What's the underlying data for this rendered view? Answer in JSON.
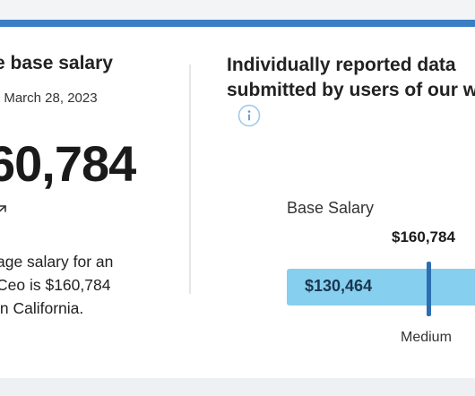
{
  "colors": {
    "accent": "#3a7ec6",
    "range_bar": "#87cfee",
    "marker": "#2c6eb0"
  },
  "left_panel": {
    "title": "e base salary",
    "as_of": "t March 28, 2023",
    "amount": "60,784",
    "trend_icon": "trend-arrow-icon",
    "description_lines": [
      "age salary for an",
      "Ceo is $160,784",
      "in California."
    ]
  },
  "right_panel": {
    "title_lines": [
      "Individually reported data",
      "submitted by users of our w"
    ],
    "info_icon": "info-icon",
    "chart_label": "Base Salary",
    "marker_value": "$160,784",
    "range_low": "$130,464",
    "marker_caption": "Medium",
    "marker_position_fraction": 0.68
  }
}
